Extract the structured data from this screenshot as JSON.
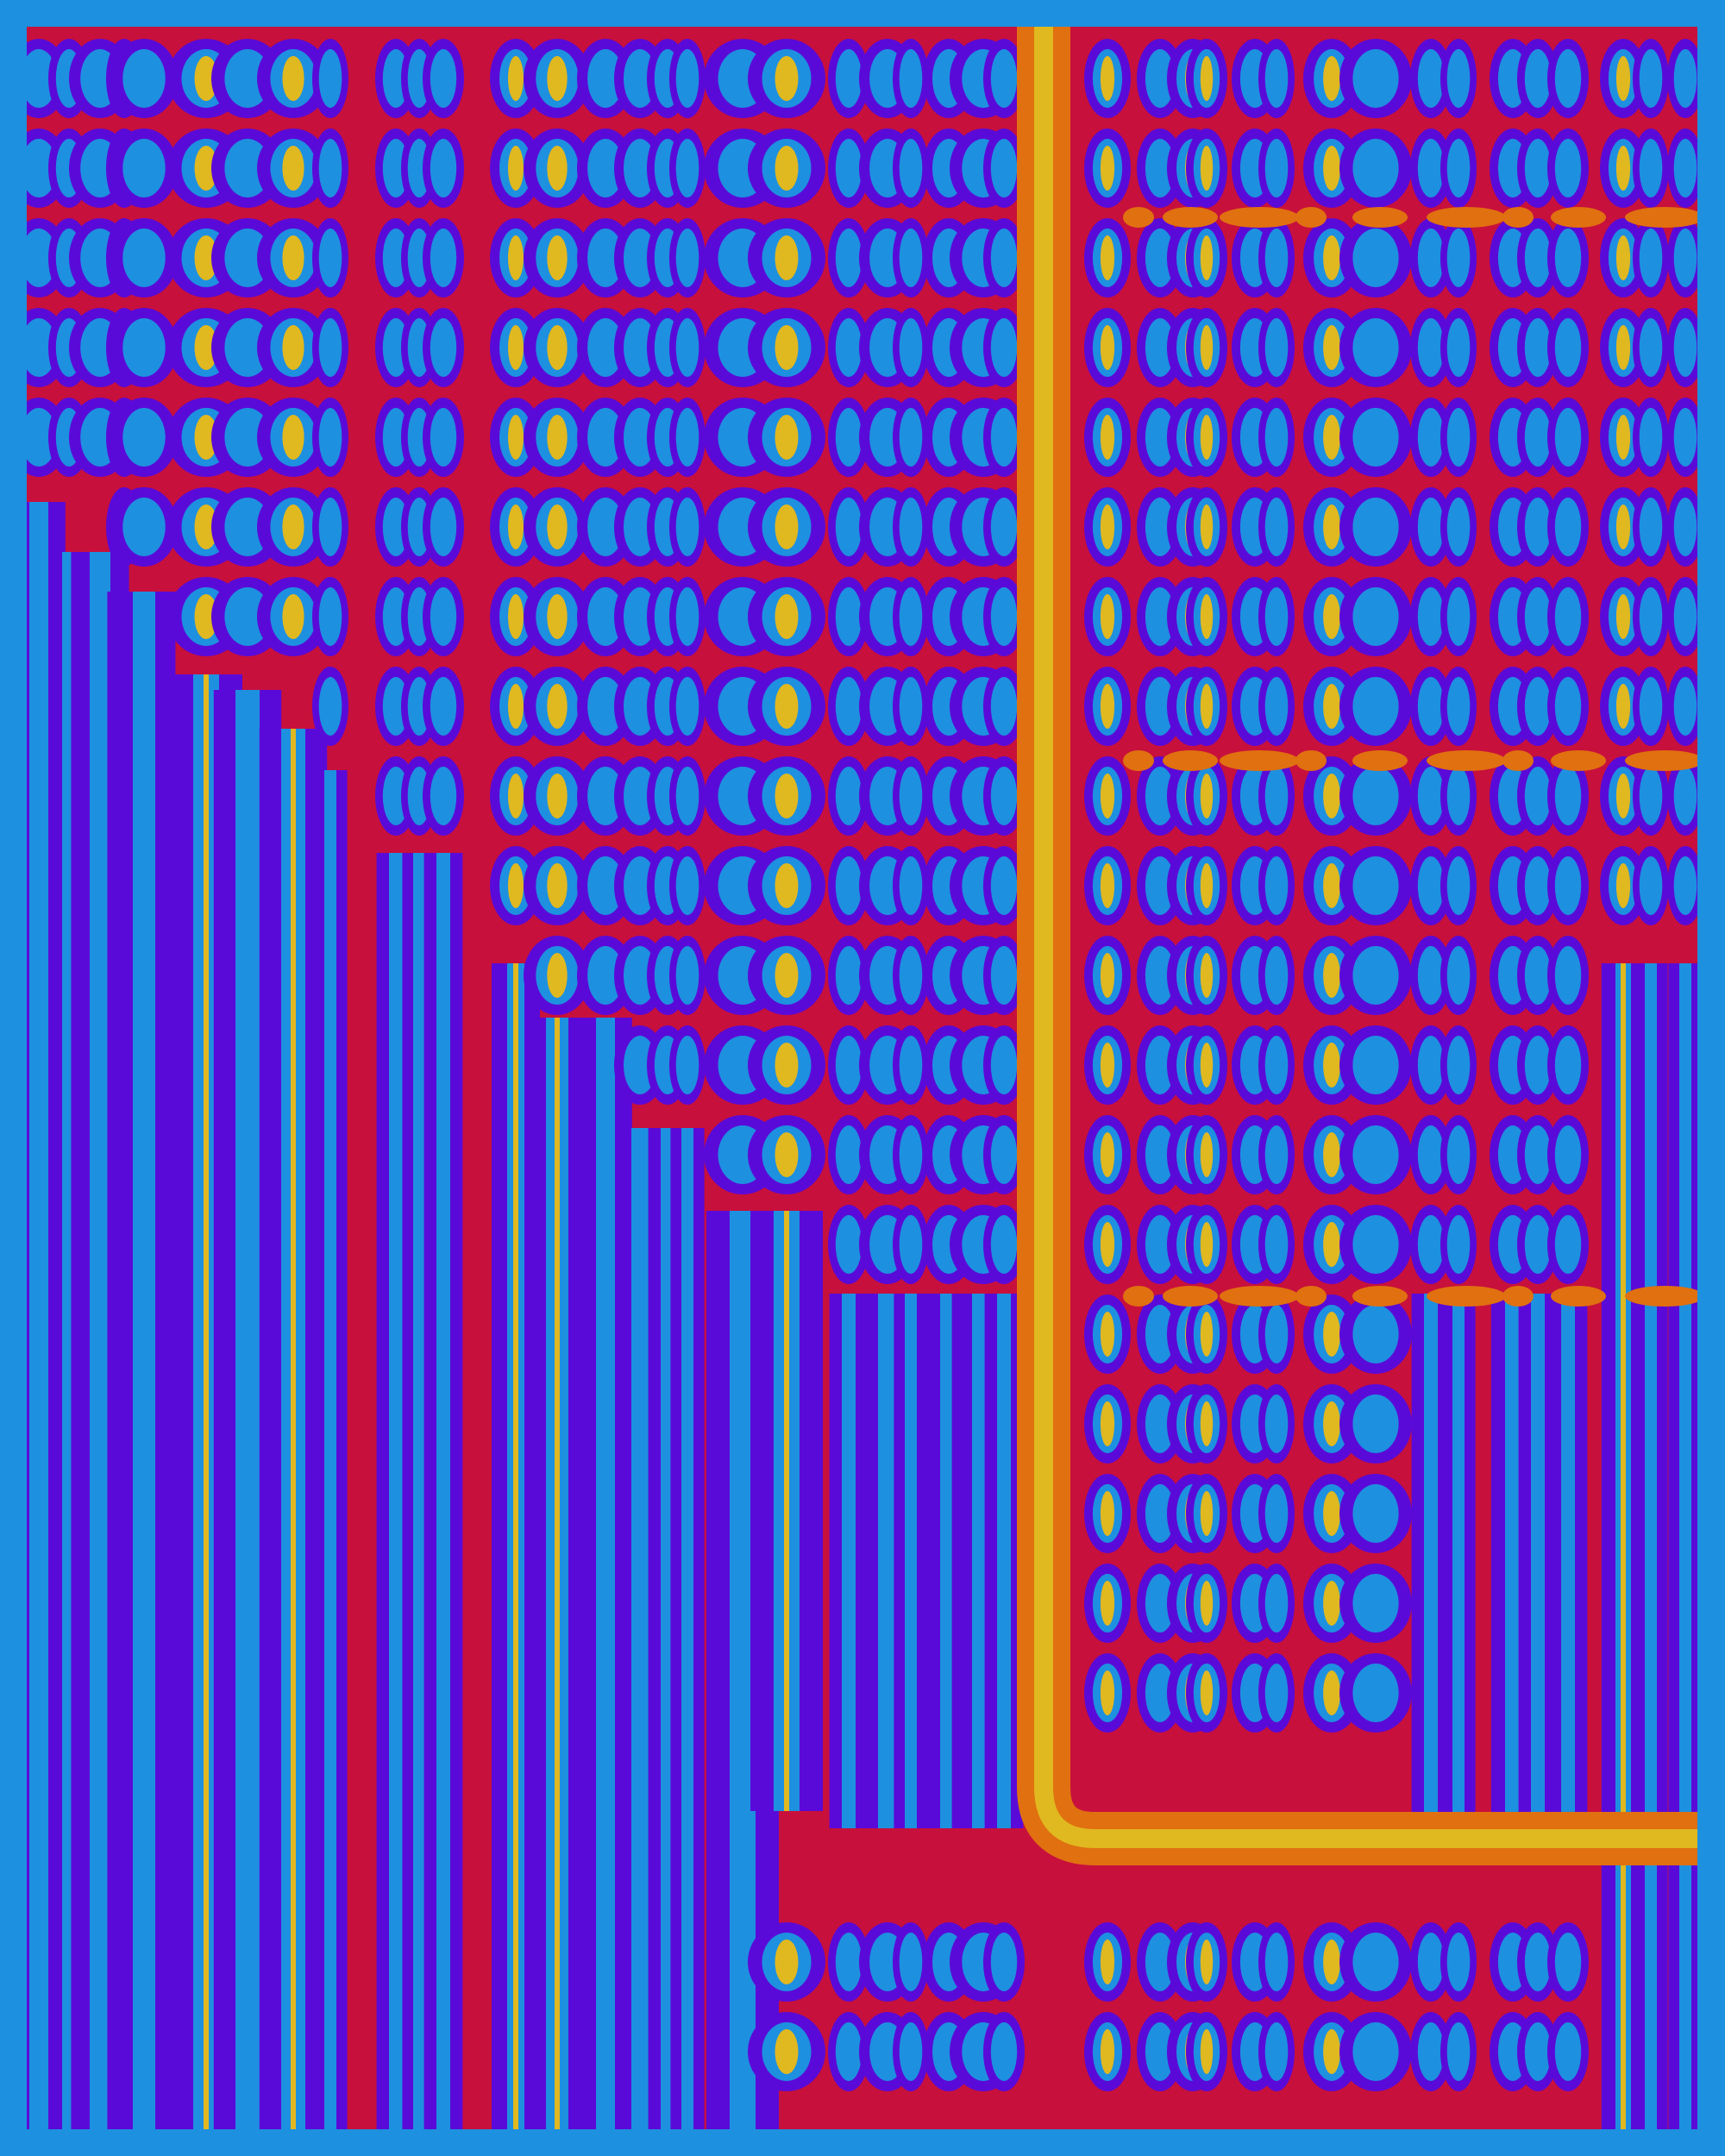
{
  "image": {
    "kind": "filled contour pattern",
    "colors": {
      "border": "#1E90E0",
      "level_0": "#C8103C",
      "level_1": "#5A0AD8",
      "level_2": "#1E90E0",
      "level_3": "#E0B820",
      "ridge": "#E07010"
    }
  }
}
